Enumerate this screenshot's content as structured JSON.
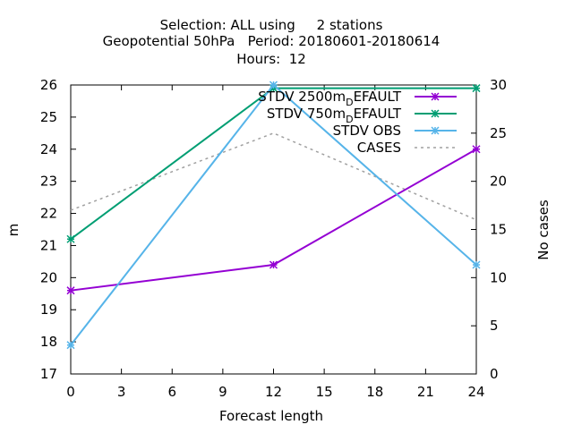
{
  "chart_data": {
    "type": "line",
    "title_lines": [
      "Selection: ALL using     2 stations",
      "Geopotential 50hPa   Period: 20180601-20180614",
      "Hours:  12"
    ],
    "xlabel": "Forecast length",
    "ylabel": "m",
    "y2label": "No cases",
    "xlim": [
      0,
      24
    ],
    "ylim": [
      17,
      26
    ],
    "y2lim": [
      0,
      30
    ],
    "x_ticks": [
      0,
      3,
      6,
      9,
      12,
      15,
      18,
      21,
      24
    ],
    "y_ticks": [
      17,
      18,
      19,
      20,
      21,
      22,
      23,
      24,
      25,
      26
    ],
    "y2_ticks": [
      0,
      5,
      10,
      15,
      20,
      25,
      30
    ],
    "legend_position": "top-right",
    "series": [
      {
        "name": "STDV 2500m_DEFAULT",
        "legend_main": "STDV 2500m",
        "legend_sub": "D",
        "legend_tail": "EFAULT",
        "color": "#9400d3",
        "axis": "y1",
        "style": "solid",
        "marker": "x",
        "x": [
          0,
          12,
          24
        ],
        "values": [
          19.6,
          20.4,
          24.0
        ]
      },
      {
        "name": "STDV 750m_DEFAULT",
        "legend_main": "STDV 750m",
        "legend_sub": "D",
        "legend_tail": "EFAULT",
        "color": "#009e73",
        "axis": "y1",
        "style": "solid",
        "marker": "x",
        "x": [
          0,
          12,
          24
        ],
        "values": [
          21.2,
          25.9,
          25.9
        ]
      },
      {
        "name": "STDV OBS",
        "legend_main": "STDV OBS",
        "legend_sub": "",
        "legend_tail": "",
        "color": "#56b4e9",
        "axis": "y1",
        "style": "solid",
        "marker": "x",
        "x": [
          0,
          12,
          24
        ],
        "values": [
          17.9,
          26.0,
          20.4
        ]
      },
      {
        "name": "CASES",
        "legend_main": "CASES",
        "legend_sub": "",
        "legend_tail": "",
        "color": "#a0a0a0",
        "axis": "y2",
        "style": "dashed",
        "marker": "none",
        "x": [
          0,
          12,
          24
        ],
        "values": [
          17,
          25,
          16
        ]
      }
    ]
  }
}
